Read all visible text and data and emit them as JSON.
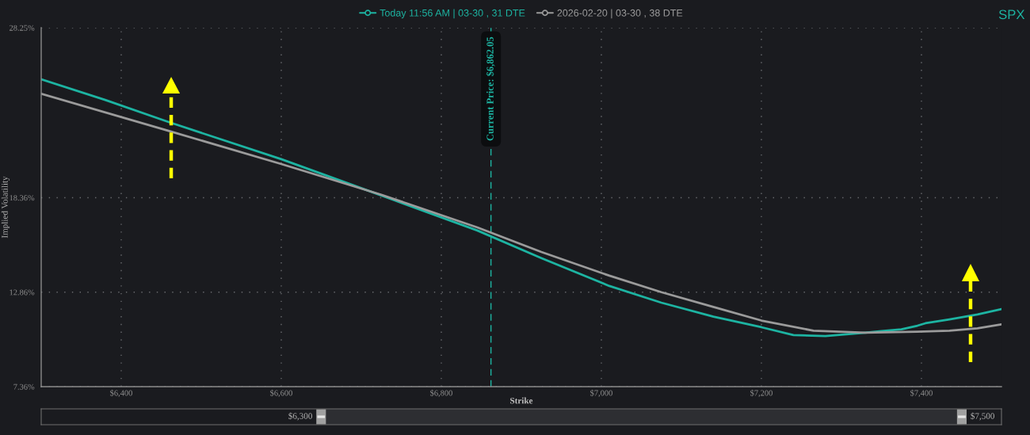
{
  "chart_data": {
    "type": "line",
    "title": "SPX",
    "xlabel": "Strike",
    "ylabel": "Implied Volatility",
    "series": [
      {
        "name": "Today 11:56 AM | 03-30 , 31 DTE",
        "color": "#1db4a2",
        "x": [
          6300,
          6380,
          6460,
          6600,
          6725,
          6845,
          6925,
          7010,
          7075,
          7140,
          7200,
          7240,
          7280,
          7330,
          7350,
          7375,
          7395,
          7405,
          7435,
          7470,
          7500
        ],
        "values": [
          25.25,
          24.05,
          22.75,
          20.6,
          18.49,
          16.45,
          14.84,
          13.22,
          12.25,
          11.44,
          10.82,
          10.36,
          10.31,
          10.5,
          10.59,
          10.7,
          10.91,
          11.05,
          11.28,
          11.56,
          11.88
        ]
      },
      {
        "name": "2026-02-20 | 03-30 , 38 DTE",
        "color": "#9b9b9b",
        "x": [
          6300,
          6460,
          6600,
          6725,
          6845,
          6925,
          7010,
          7075,
          7140,
          7200,
          7265,
          7330,
          7395,
          7435,
          7470,
          7500
        ],
        "values": [
          24.41,
          22.24,
          20.32,
          18.53,
          16.63,
          15.2,
          13.82,
          12.86,
          12.0,
          11.21,
          10.62,
          10.5,
          10.56,
          10.62,
          10.76,
          10.99
        ]
      }
    ],
    "xlim": [
      6300,
      7500
    ],
    "xticks": [
      {
        "value": 6400,
        "label": "$6,400"
      },
      {
        "value": 6600,
        "label": "$6,600"
      },
      {
        "value": 6800,
        "label": "$6,800"
      },
      {
        "value": 7000,
        "label": "$7,000"
      },
      {
        "value": 7200,
        "label": "$7,200"
      },
      {
        "value": 7400,
        "label": "$7,400"
      }
    ],
    "ylim": [
      7.36,
      28.25
    ],
    "yticks": [
      {
        "value": 7.36,
        "label": "7.36%"
      },
      {
        "value": 12.86,
        "label": "12.86%"
      },
      {
        "value": 18.36,
        "label": "18.36%"
      },
      {
        "value": 28.25,
        "label": "28.25%"
      }
    ],
    "ref_lines": [
      {
        "axis": "x",
        "value": 6862.05,
        "label": "Current Price: $6,862.05",
        "color": "#1db4a2",
        "line_style": "dashed"
      }
    ],
    "annotations": [
      "$6,300",
      "$7,500"
    ],
    "grid": true,
    "legend": "top"
  }
}
